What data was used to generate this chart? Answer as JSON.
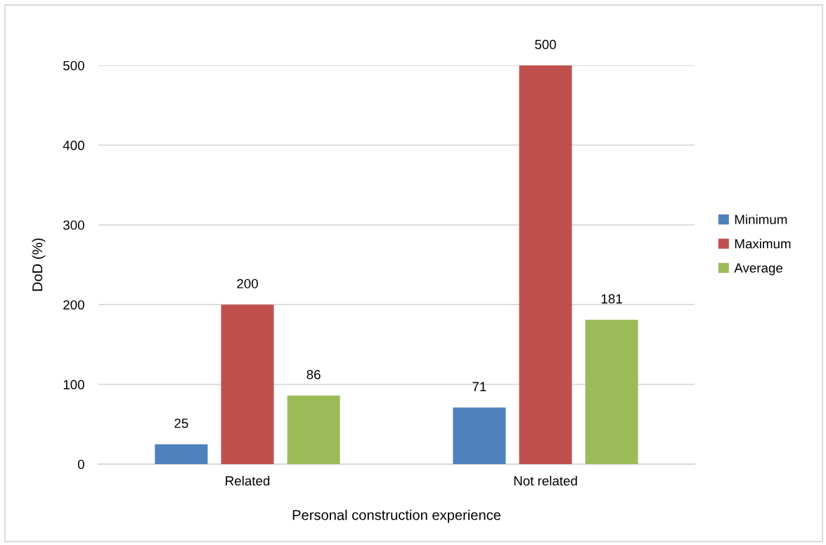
{
  "chart_data": {
    "type": "bar",
    "xlabel": "Personal construction experience",
    "ylabel": "DoD (%)",
    "categories": [
      "Related",
      "Not related"
    ],
    "series": [
      {
        "name": "Minimum",
        "color": "#4f81bd",
        "values": [
          25,
          71
        ]
      },
      {
        "name": "Maximum",
        "color": "#c0504d",
        "values": [
          200,
          500
        ]
      },
      {
        "name": "Average",
        "color": "#9bbb59",
        "values": [
          86,
          181
        ]
      }
    ],
    "ylim": [
      0,
      500
    ],
    "yticks": [
      0,
      100,
      200,
      300,
      400,
      500
    ],
    "grid": "y",
    "legend": "right",
    "data_labels": true
  }
}
